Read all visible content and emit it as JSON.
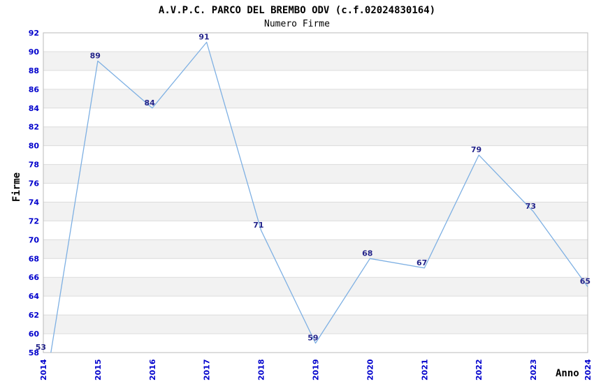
{
  "chart_data": {
    "type": "line",
    "title": "A.V.P.C. PARCO DEL BREMBO ODV (c.f.02024830164)",
    "subtitle": "Numero Firme",
    "xlabel": "Anno",
    "ylabel": "Firme",
    "categories": [
      "2014",
      "2015",
      "2016",
      "2017",
      "2018",
      "2019",
      "2020",
      "2021",
      "2022",
      "2023",
      "2024"
    ],
    "series": [
      {
        "name": "Numero Firme",
        "values": [
          53,
          89,
          84,
          91,
          71,
          59,
          68,
          67,
          79,
          73,
          65
        ]
      }
    ],
    "ylim": [
      58,
      92
    ],
    "ytick_step": 2,
    "grid": true,
    "legend_position": "none",
    "band_fill": "alternating",
    "colors": {
      "line": "#7EB0E3",
      "tick_label": "#0000CC",
      "data_label": "#24248A",
      "band": "#F2F2F2",
      "gridline": "#DCDCDC",
      "border": "#BBBBBB",
      "title": "#000000"
    }
  }
}
